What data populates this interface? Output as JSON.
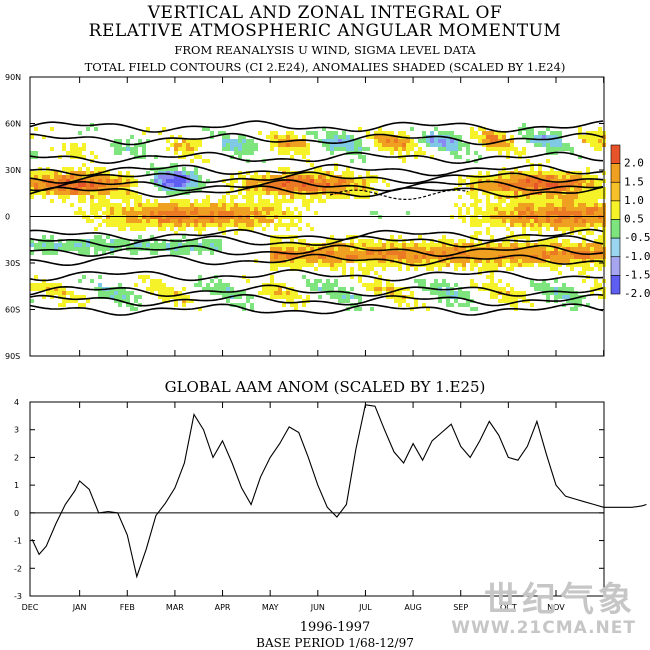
{
  "header": {
    "line1": "VERTICAL AND ZONAL INTEGRAL OF",
    "line2": "RELATIVE ATMOSPHERIC ANGULAR MOMENTUM",
    "line3": "FROM REANALYSIS U WIND,  SIGMA LEVEL DATA",
    "line4": "TOTAL FIELD CONTOURS (CI 2.E24),  ANOMALIES SHADED (SCALED BY 1.E24)"
  },
  "colors": {
    "orange_red": "#e8542a",
    "orange": "#f0a020",
    "yellow": "#f6f22a",
    "green": "#7ee57e",
    "blue_light": "#a6a6f0",
    "blue_dark": "#5e5ef2"
  },
  "chart_data": [
    {
      "type": "heatmap",
      "title": "VERTICAL AND ZONAL INTEGRAL OF RELATIVE ATMOSPHERIC ANGULAR MOMENTUM",
      "y_tick_labels": [
        "90N",
        "60N",
        "30N",
        "0",
        "30S",
        "60S",
        "90S"
      ],
      "ylim": [
        -90,
        90
      ],
      "x_tick_labels": [
        "DEC",
        "JAN",
        "FEB",
        "MAR",
        "APR",
        "MAY",
        "JUN",
        "JUL",
        "AUG",
        "SEP",
        "OCT",
        "NOV"
      ],
      "colorbar": {
        "labels": [
          "2.0",
          "1.5",
          "1.0",
          "0.5",
          "-0.5",
          "-1.0",
          "-1.5",
          "-2.0"
        ],
        "colors": [
          "#e8542a",
          "#f0a020",
          "#f6c02a",
          "#f6f22a",
          "#7ee57e",
          "#9bd6f0",
          "#a6a6f0",
          "#5e5ef2"
        ]
      },
      "contours": "total field contours, CI 2.E24"
    },
    {
      "type": "line",
      "title": "GLOBAL AAM ANOM (SCALED BY 1.E25)",
      "x_tick_labels": [
        "DEC",
        "JAN",
        "FEB",
        "MAR",
        "APR",
        "MAY",
        "JUN",
        "JUL",
        "AUG",
        "SEP",
        "OCT",
        "NOV"
      ],
      "y_ticks": [
        4,
        3,
        2,
        1,
        0,
        -1,
        -2,
        -3
      ],
      "ylim": [
        -3,
        4
      ],
      "x_months": [
        0,
        0.15,
        0.3,
        0.5,
        0.7,
        0.9,
        1.0,
        1.2,
        1.4,
        1.6,
        1.8,
        2.0,
        2.2,
        2.4,
        2.6,
        2.8,
        3.0,
        3.2,
        3.4,
        3.6,
        3.8,
        4.0,
        4.2,
        4.4,
        4.6,
        4.8,
        5.0,
        5.2,
        5.4,
        5.6,
        5.8,
        6.0,
        6.2,
        6.4,
        6.6,
        6.8,
        7.0,
        7.2,
        7.4,
        7.6,
        7.8,
        8.0,
        8.2,
        8.4,
        8.6,
        8.8,
        9.0,
        9.2,
        9.4,
        9.6,
        9.8,
        10.0,
        10.2,
        10.4,
        10.6,
        10.8,
        11.0,
        11.2,
        11.4,
        11.6,
        11.8,
        12.0,
        12.2,
        12.4,
        12.6,
        12.8,
        12.9
      ],
      "values": [
        -0.95,
        -1.5,
        -1.2,
        -0.4,
        0.3,
        0.8,
        1.15,
        0.85,
        0.0,
        0.05,
        0.0,
        -0.8,
        -2.3,
        -1.3,
        -0.1,
        0.35,
        0.9,
        1.8,
        3.55,
        3.0,
        2.0,
        2.6,
        1.8,
        0.9,
        0.3,
        1.3,
        2.0,
        2.5,
        3.1,
        2.9,
        2.0,
        1.0,
        0.2,
        -0.15,
        0.3,
        2.3,
        3.9,
        3.85,
        3.0,
        2.2,
        1.8,
        2.5,
        1.9,
        2.6,
        2.9,
        3.2,
        2.4,
        2.0,
        2.6,
        3.3,
        2.8,
        2.0,
        1.9,
        2.4,
        3.3,
        2.1,
        1.0,
        0.6,
        0.5,
        0.4,
        0.3,
        0.2,
        0.2,
        0.2,
        0.2,
        0.25,
        0.3
      ]
    }
  ],
  "ts_title": "GLOBAL AAM ANOM (SCALED BY 1.E25)",
  "footer": {
    "years": "1996-1997",
    "base_period": "BASE PERIOD  1/68-12/97"
  },
  "watermark": {
    "cn": "世纪气象",
    "url": "WWW.21CMA.NET"
  }
}
